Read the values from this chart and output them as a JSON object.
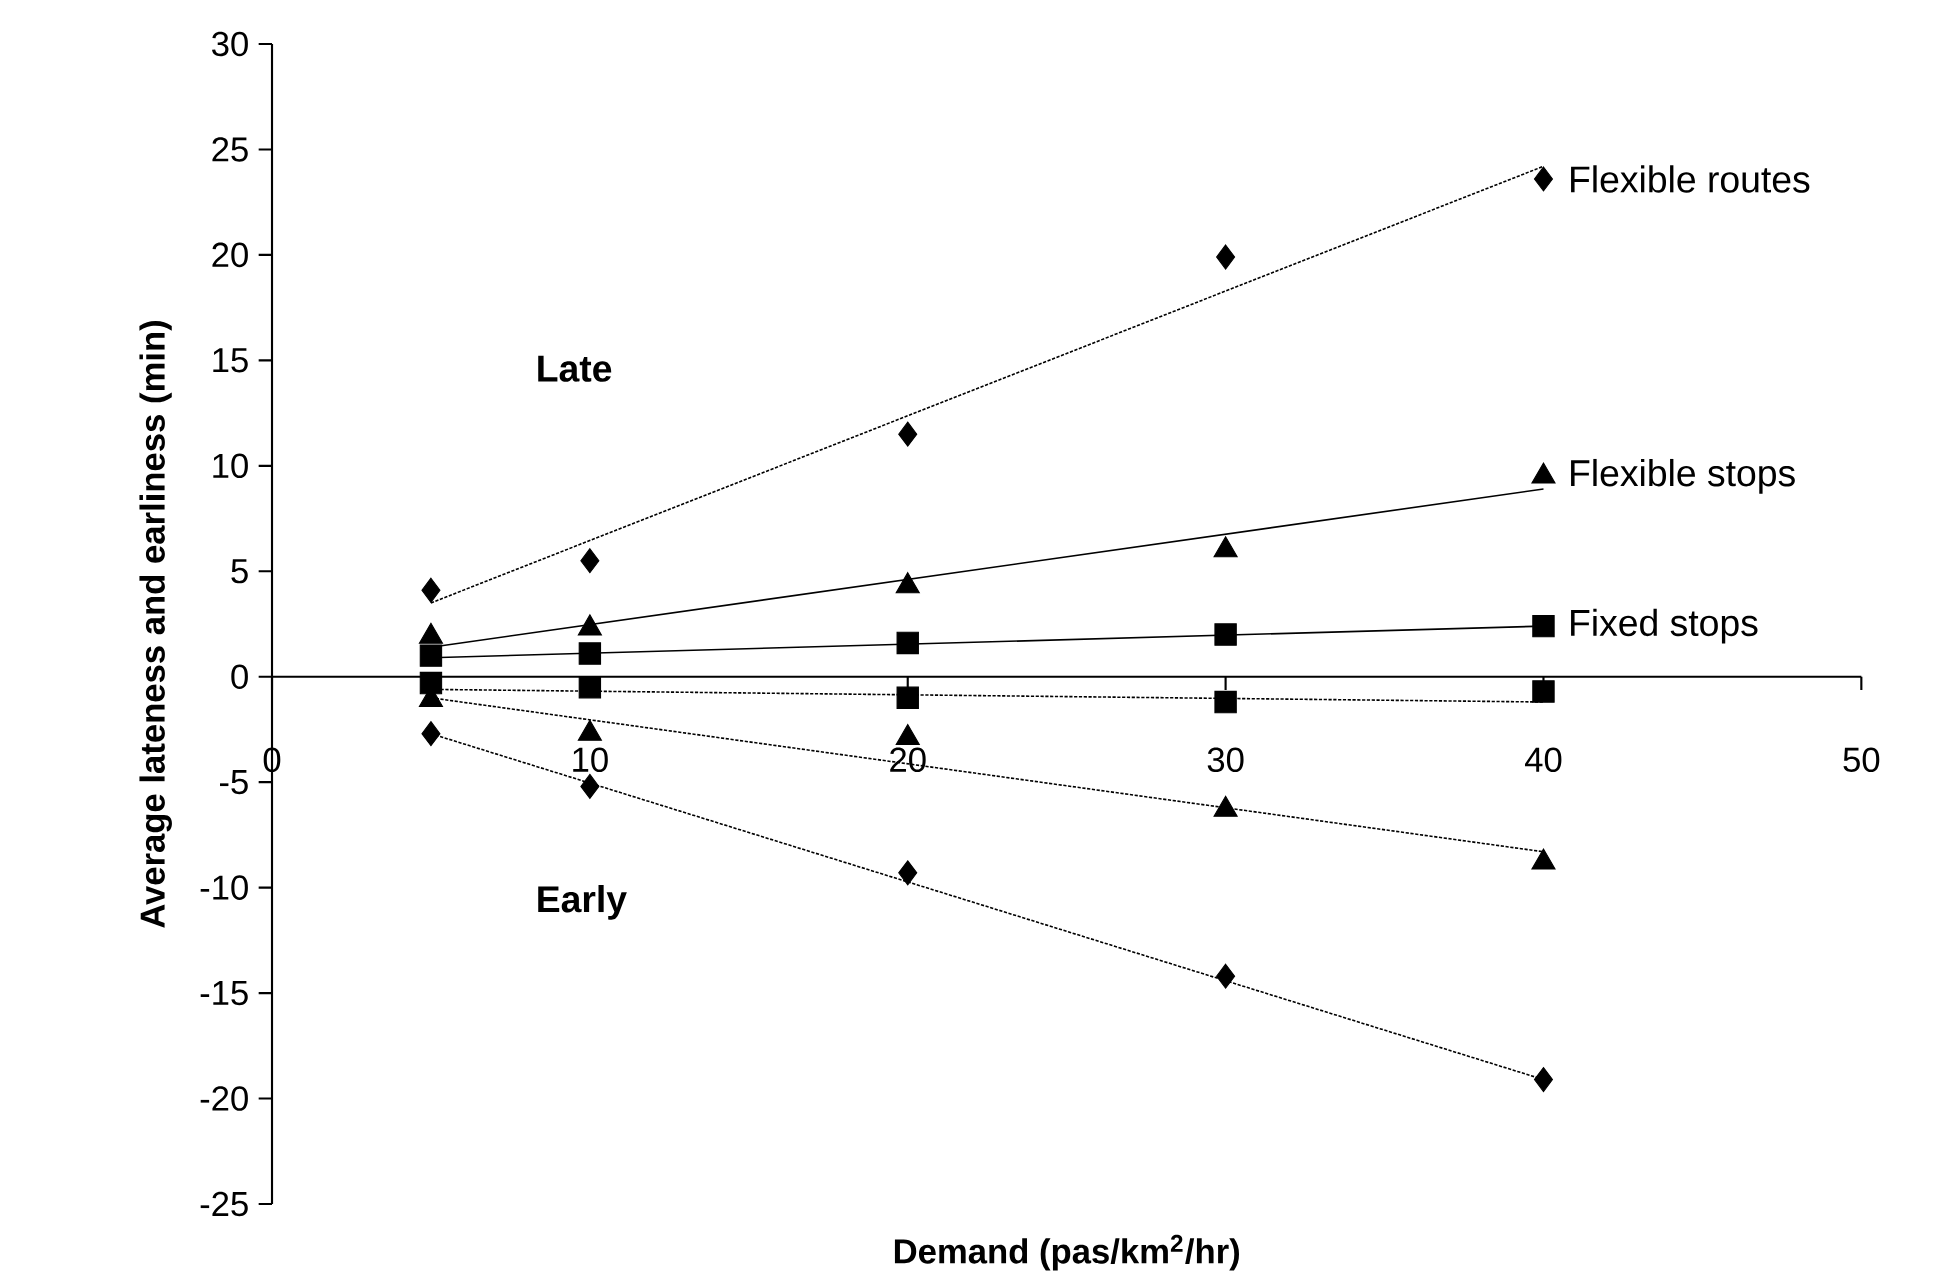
{
  "chart_data": {
    "type": "scatter",
    "xlabel": "Demand (pas/km$^{2}$/hr)",
    "ylabel": "Average lateness and earliness (min)",
    "xlim": [
      0,
      50
    ],
    "xticks": [
      0,
      10,
      20,
      30,
      40,
      50
    ],
    "ylim": [
      -25,
      30
    ],
    "yticks": [
      -25,
      -20,
      -15,
      -10,
      -5,
      0,
      5,
      10,
      15,
      20,
      25,
      30
    ],
    "annotations": [
      "Late",
      "Early"
    ],
    "series": [
      {
        "name": "Flexible routes",
        "type": "scatter",
        "marker": "diamond",
        "color": "#000000",
        "x": [
          5,
          10,
          20,
          30,
          40
        ],
        "values": [
          4.1,
          5.5,
          11.5,
          19.9,
          23.6
        ]
      },
      {
        "name": "Flexible stops",
        "type": "scatter",
        "marker": "triangle",
        "color": "#000000",
        "x": [
          5,
          10,
          20,
          30,
          40
        ],
        "values": [
          1.9,
          2.3,
          4.3,
          6.0,
          9.5
        ]
      },
      {
        "name": "Fixed stops",
        "type": "scatter",
        "marker": "square",
        "color": "#000000",
        "x": [
          5,
          10,
          20,
          30,
          40
        ],
        "values": [
          1.0,
          1.1,
          1.6,
          2.0,
          2.4
        ]
      },
      {
        "type": "scatter",
        "marker": "square",
        "color": "#000000",
        "x": [
          5,
          10,
          20,
          30,
          40
        ],
        "values": [
          -0.3,
          -0.5,
          -1.0,
          -1.2,
          -0.7
        ]
      },
      {
        "type": "scatter",
        "marker": "triangle",
        "color": "#000000",
        "x": [
          5,
          10,
          20,
          30,
          40
        ],
        "values": [
          -1.1,
          -2.7,
          -2.9,
          -6.3,
          -8.8
        ]
      },
      {
        "type": "scatter",
        "marker": "diamond",
        "color": "#000000",
        "x": [
          5,
          10,
          20,
          30,
          40
        ],
        "values": [
          -2.7,
          -5.2,
          -9.3,
          -14.2,
          -19.1
        ]
      },
      {
        "type": "line",
        "line_style": "dotted",
        "color": "#000000",
        "x": [
          5,
          40
        ],
        "values": [
          3.5,
          24.2
        ]
      },
      {
        "type": "line",
        "line_style": "solid",
        "color": "#000000",
        "x": [
          5,
          40
        ],
        "values": [
          1.4,
          8.9
        ]
      },
      {
        "type": "line",
        "line_style": "solid",
        "color": "#000000",
        "x": [
          5,
          40
        ],
        "values": [
          0.9,
          2.4
        ]
      },
      {
        "type": "line",
        "line_style": "dotted",
        "color": "#000000",
        "x": [
          5,
          40
        ],
        "values": [
          -0.6,
          -1.2
        ]
      },
      {
        "type": "line",
        "line_style": "dotted",
        "color": "#000000",
        "x": [
          5,
          40
        ],
        "values": [
          -1.0,
          -8.3
        ]
      },
      {
        "type": "line",
        "line_style": "dotted",
        "color": "#000000",
        "x": [
          5,
          40
        ],
        "values": [
          -2.7,
          -19.1
        ]
      }
    ]
  }
}
